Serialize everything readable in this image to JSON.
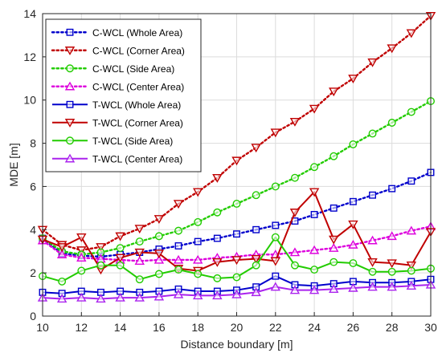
{
  "chart_data": {
    "type": "line",
    "title": "",
    "xlabel": "Distance boundary [m]",
    "ylabel": "MDE [m]",
    "xlim": [
      10,
      30
    ],
    "ylim": [
      0,
      14
    ],
    "xticks": [
      10,
      12,
      14,
      16,
      18,
      20,
      22,
      24,
      26,
      28,
      30
    ],
    "yticks": [
      0,
      2,
      4,
      6,
      8,
      10,
      12,
      14
    ],
    "xtick_labels": [
      "10",
      "12",
      "14",
      "16",
      "18",
      "20",
      "22",
      "24",
      "26",
      "28",
      "30"
    ],
    "ytick_labels": [
      "0",
      "2",
      "4",
      "6",
      "8",
      "10",
      "12",
      "14"
    ],
    "grid": true,
    "legend_position": "top-left",
    "x": [
      10,
      11,
      12,
      13,
      14,
      15,
      16,
      17,
      18,
      19,
      20,
      21,
      22,
      23,
      24,
      25,
      26,
      27,
      28,
      29,
      30
    ],
    "series": [
      {
        "name": "C-WCL (Whole Area)",
        "color": "#0000cc",
        "line": "dotted",
        "marker": "square",
        "values": [
          3.6,
          2.9,
          2.8,
          2.75,
          2.85,
          2.95,
          3.1,
          3.25,
          3.45,
          3.6,
          3.8,
          4.0,
          4.2,
          4.4,
          4.7,
          5.0,
          5.3,
          5.6,
          5.9,
          6.25,
          6.65
        ]
      },
      {
        "name": "C-WCL (Corner Area)",
        "color": "#c00000",
        "line": "dotted",
        "marker": "triangle-down",
        "values": [
          4.0,
          3.3,
          3.05,
          3.2,
          3.7,
          4.05,
          4.5,
          5.2,
          5.75,
          6.4,
          7.2,
          7.8,
          8.5,
          9.0,
          9.6,
          10.4,
          11.0,
          11.75,
          12.4,
          13.1,
          13.9
        ]
      },
      {
        "name": "C-WCL (Side Area)",
        "color": "#22cc00",
        "line": "dotted",
        "marker": "circle",
        "values": [
          3.6,
          3.0,
          2.85,
          2.95,
          3.15,
          3.45,
          3.7,
          3.95,
          4.35,
          4.8,
          5.2,
          5.6,
          6.0,
          6.4,
          6.9,
          7.4,
          7.95,
          8.45,
          8.95,
          9.45,
          9.95
        ]
      },
      {
        "name": "C-WCL (Center Area)",
        "color": "#dd00dd",
        "line": "dotted",
        "marker": "triangle-up",
        "values": [
          3.5,
          2.85,
          2.7,
          2.65,
          2.6,
          2.55,
          2.6,
          2.6,
          2.6,
          2.7,
          2.75,
          2.85,
          2.85,
          2.95,
          3.05,
          3.15,
          3.3,
          3.5,
          3.7,
          3.95,
          4.15
        ]
      },
      {
        "name": "T-WCL (Whole Area)",
        "color": "#0000cc",
        "line": "solid",
        "marker": "square",
        "values": [
          1.1,
          1.05,
          1.15,
          1.1,
          1.15,
          1.1,
          1.15,
          1.25,
          1.15,
          1.15,
          1.2,
          1.35,
          1.85,
          1.45,
          1.4,
          1.5,
          1.6,
          1.55,
          1.55,
          1.6,
          1.7
        ]
      },
      {
        "name": "T-WCL (Corner Area)",
        "color": "#c00000",
        "line": "solid",
        "marker": "triangle-down",
        "values": [
          3.55,
          3.2,
          3.65,
          2.15,
          2.7,
          2.95,
          2.9,
          2.2,
          2.1,
          2.5,
          2.6,
          2.65,
          2.55,
          4.8,
          5.75,
          3.55,
          4.25,
          2.5,
          2.45,
          2.35,
          3.9
        ]
      },
      {
        "name": "T-WCL (Side Area)",
        "color": "#22cc00",
        "line": "solid",
        "marker": "circle",
        "values": [
          1.85,
          1.6,
          2.1,
          2.35,
          2.35,
          1.7,
          1.95,
          2.15,
          1.95,
          1.75,
          1.8,
          2.35,
          3.65,
          2.35,
          2.15,
          2.5,
          2.45,
          2.05,
          2.05,
          2.1,
          2.2
        ]
      },
      {
        "name": "T-WCL (Center Area)",
        "color": "#aa22ee",
        "line": "solid",
        "marker": "triangle-up",
        "values": [
          0.85,
          0.8,
          0.85,
          0.8,
          0.85,
          0.85,
          0.9,
          1.0,
          0.95,
          0.95,
          1.0,
          1.1,
          1.35,
          1.2,
          1.2,
          1.25,
          1.3,
          1.35,
          1.35,
          1.4,
          1.45
        ]
      }
    ]
  }
}
